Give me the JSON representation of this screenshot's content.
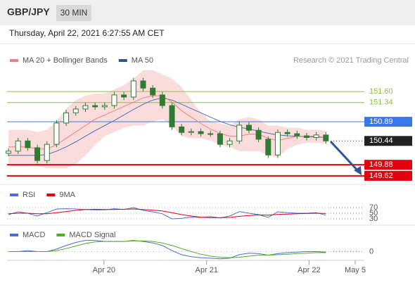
{
  "header": {
    "symbol": "GBP/JPY",
    "timeframe": "30 MIN",
    "timestamp": "Thursday, April 22, 2021 6:27:55 AM CET"
  },
  "chart_data": [
    {
      "type": "candlestick",
      "credit": "Research © 2021 Trading Central",
      "legend": [
        {
          "name": "MA 20 + Bollinger Bands",
          "color": "#f08080"
        },
        {
          "name": "MA 50",
          "color": "#2f5597"
        }
      ],
      "xlim": [
        -0.15,
        37
      ],
      "ylim": [
        149.42,
        152.51
      ],
      "up_color": "#2e7d32",
      "down_color": "#2e7d32",
      "band_color": "#fbdcdc",
      "ma20_color": "#f08080",
      "ma50_color": "#4a6fb5",
      "open": [
        150.15,
        150.2,
        150.44,
        150.28,
        149.98,
        150.36,
        150.86,
        151.1,
        151.19,
        151.27,
        151.24,
        151.27,
        151.52,
        151.47,
        151.85,
        151.68,
        151.52,
        151.27,
        150.77,
        150.64,
        150.66,
        150.61,
        150.61,
        150.36,
        150.44,
        150.81,
        150.69,
        150.48,
        150.11,
        150.64,
        150.61,
        150.56,
        150.52,
        150.58
      ],
      "high": [
        150.27,
        150.51,
        150.51,
        150.35,
        150.43,
        150.93,
        151.17,
        151.26,
        151.34,
        151.34,
        151.34,
        151.59,
        151.59,
        151.92,
        151.92,
        151.75,
        151.59,
        151.34,
        150.84,
        150.73,
        150.73,
        150.68,
        150.68,
        150.51,
        150.9,
        150.88,
        150.76,
        150.55,
        150.71,
        150.71,
        150.68,
        150.63,
        150.65,
        150.65
      ],
      "low": [
        150.08,
        150.13,
        150.21,
        149.91,
        149.91,
        150.29,
        150.79,
        151.03,
        151.12,
        151.17,
        151.17,
        151.2,
        151.4,
        151.4,
        151.61,
        151.45,
        151.2,
        150.7,
        150.57,
        150.57,
        150.54,
        150.54,
        150.29,
        150.29,
        150.37,
        150.62,
        150.41,
        150.04,
        150.04,
        150.54,
        150.49,
        150.45,
        150.45,
        150.37
      ],
      "close": [
        150.2,
        150.44,
        150.28,
        149.98,
        150.36,
        150.86,
        151.1,
        151.19,
        151.27,
        151.24,
        151.27,
        151.52,
        151.47,
        151.85,
        151.68,
        151.52,
        151.27,
        150.77,
        150.64,
        150.66,
        150.61,
        150.61,
        150.36,
        150.44,
        150.81,
        150.69,
        150.48,
        150.11,
        150.64,
        150.61,
        150.56,
        150.52,
        150.58,
        150.44
      ],
      "ma20": [
        150.3,
        150.3,
        150.3,
        150.25,
        150.25,
        150.35,
        150.5,
        150.65,
        150.8,
        150.95,
        151.05,
        151.15,
        151.25,
        151.35,
        151.45,
        151.5,
        151.5,
        151.35,
        151.15,
        151.0,
        150.85,
        150.72,
        150.62,
        150.55,
        150.55,
        150.6,
        150.6,
        150.5,
        150.45,
        150.5,
        150.55,
        150.55,
        150.55,
        150.52
      ],
      "upper": [
        150.7,
        150.7,
        150.7,
        150.65,
        150.7,
        150.9,
        151.2,
        151.4,
        151.5,
        151.55,
        151.55,
        151.65,
        151.75,
        151.9,
        152.1,
        152.1,
        152.0,
        151.9,
        151.7,
        151.4,
        151.1,
        150.9,
        150.85,
        150.8,
        150.95,
        151.0,
        150.95,
        150.8,
        150.8,
        150.75,
        150.75,
        150.7,
        150.7,
        150.68
      ],
      "lower": [
        149.9,
        149.9,
        149.9,
        149.85,
        149.8,
        149.8,
        149.8,
        149.9,
        150.1,
        150.35,
        150.55,
        150.65,
        150.75,
        150.8,
        150.8,
        150.9,
        150.95,
        150.8,
        150.55,
        150.5,
        150.5,
        150.45,
        150.35,
        150.3,
        150.2,
        150.2,
        150.2,
        150.1,
        150.05,
        150.25,
        150.35,
        150.4,
        150.4,
        150.38
      ],
      "ma50": [
        150.1,
        150.1,
        150.1,
        150.1,
        150.12,
        150.2,
        150.3,
        150.42,
        150.55,
        150.68,
        150.8,
        150.92,
        151.05,
        151.18,
        151.3,
        151.4,
        151.45,
        151.4,
        151.3,
        151.2,
        151.1,
        151.0,
        150.9,
        150.82,
        150.76,
        150.72,
        150.67,
        150.62,
        150.58,
        150.56,
        150.55,
        150.54,
        150.53,
        150.52
      ],
      "levels": [
        {
          "value": 151.6,
          "label": "151.60",
          "color": "#8cbf3f",
          "boxed": false
        },
        {
          "value": 151.34,
          "label": "151.34",
          "color": "#8cbf3f",
          "boxed": false
        },
        {
          "value": 150.89,
          "label": "150.89",
          "color": "#3b78e7",
          "boxed": true
        },
        {
          "value": 150.44,
          "label": "150.44",
          "color": "#222222",
          "boxed": true,
          "dotted": true
        },
        {
          "value": 149.88,
          "label": "149.88",
          "color": "#e3000f",
          "boxed": true
        },
        {
          "value": 149.62,
          "label": "149.62",
          "color": "#e3000f",
          "boxed": true
        }
      ]
    },
    {
      "type": "line",
      "xlim": [
        -0.15,
        37
      ],
      "ylim": [
        12.5,
        95
      ],
      "yticks": [
        70,
        50,
        30
      ],
      "series": [
        {
          "name": "RSI",
          "color": "#4a6fd0",
          "values": [
            45,
            55,
            50,
            40,
            52,
            65,
            66,
            65,
            63,
            62,
            62,
            66,
            63,
            70,
            60,
            55,
            48,
            30,
            32,
            36,
            35,
            38,
            33,
            40,
            56,
            50,
            45,
            35,
            55,
            52,
            50,
            50,
            52,
            43
          ]
        },
        {
          "name": "9MA",
          "color": "#e3000f",
          "values": [
            48,
            50,
            50,
            48,
            48,
            52,
            56,
            60,
            63,
            64,
            63,
            63,
            64,
            65,
            63,
            61,
            58,
            52,
            45,
            40,
            36,
            34,
            34,
            35,
            39,
            42,
            44,
            43,
            46,
            47,
            48,
            49,
            50,
            49
          ]
        }
      ]
    },
    {
      "type": "line",
      "xlim": [
        -0.15,
        37
      ],
      "ylim": [
        -0.2,
        0.45
      ],
      "yticks": [
        0
      ],
      "xticks": [
        {
          "value": 9.93,
          "label": "Apr 20"
        },
        {
          "value": 20.6,
          "label": "Apr 21"
        },
        {
          "value": 31.25,
          "label": "Apr 22"
        },
        {
          "value": 36.05,
          "label": "May 5"
        }
      ],
      "series": [
        {
          "name": "MACD",
          "color": "#4a6fd0",
          "values": [
            0.0,
            0.0,
            0.02,
            0.0,
            0.0,
            0.05,
            0.12,
            0.18,
            0.22,
            0.22,
            0.2,
            0.2,
            0.2,
            0.22,
            0.2,
            0.17,
            0.12,
            0.02,
            -0.06,
            -0.1,
            -0.12,
            -0.13,
            -0.14,
            -0.13,
            -0.06,
            -0.03,
            -0.04,
            -0.07,
            -0.04,
            -0.02,
            -0.01,
            0.0,
            0.0,
            -0.01
          ]
        },
        {
          "name": "MACD Signal",
          "color": "#4caf2a",
          "values": [
            0.0,
            0.0,
            0.0,
            0.0,
            0.0,
            0.02,
            0.06,
            0.11,
            0.16,
            0.19,
            0.2,
            0.2,
            0.2,
            0.21,
            0.21,
            0.2,
            0.17,
            0.12,
            0.06,
            0.0,
            -0.05,
            -0.09,
            -0.11,
            -0.12,
            -0.11,
            -0.09,
            -0.07,
            -0.07,
            -0.06,
            -0.05,
            -0.04,
            -0.03,
            -0.02,
            -0.02
          ]
        }
      ]
    }
  ]
}
